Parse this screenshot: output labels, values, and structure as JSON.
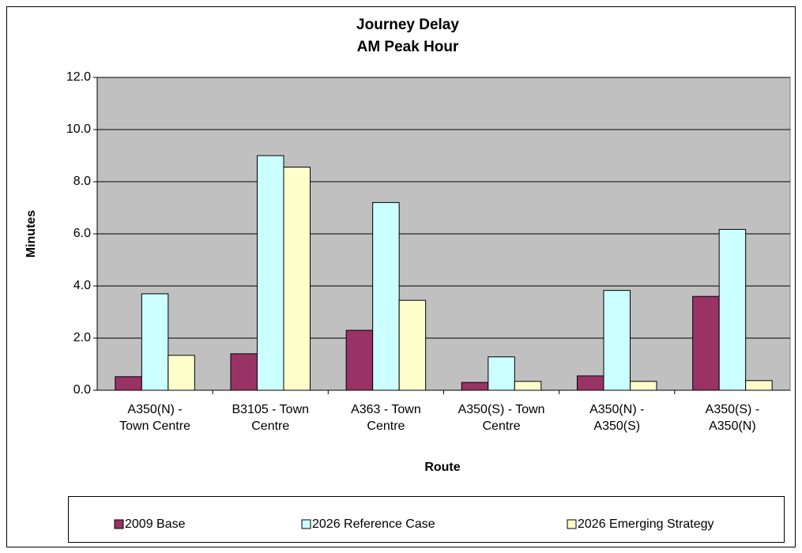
{
  "chart_data": {
    "type": "bar",
    "title": "Journey Delay",
    "subtitle": "AM Peak Hour",
    "x_label": "Route",
    "y_label": "Minutes",
    "categories": [
      "A350(N) - Town Centre",
      "B3105 - Town Centre",
      "A363 - Town Centre",
      "A350(S) - Town Centre",
      "A350(N) - A350(S)",
      "A350(S) - A350(N)"
    ],
    "series": [
      {
        "name": "2009 Base",
        "color": "#993366",
        "values": [
          0.52,
          1.4,
          2.3,
          0.3,
          0.55,
          3.6
        ]
      },
      {
        "name": "2026 Reference Case",
        "color": "#ccffff",
        "values": [
          3.7,
          9.0,
          7.2,
          1.28,
          3.83,
          6.17
        ]
      },
      {
        "name": "2026 Emerging Strategy",
        "color": "#ffffcc",
        "values": [
          1.34,
          8.56,
          3.45,
          0.34,
          0.34,
          0.37
        ]
      }
    ],
    "ylim": [
      0,
      12
    ],
    "yticks": [
      {
        "value": 0,
        "label": "0.0"
      },
      {
        "value": 2,
        "label": "2.0"
      },
      {
        "value": 4,
        "label": "4.0"
      },
      {
        "value": 6,
        "label": "6.0"
      },
      {
        "value": 8,
        "label": "8.0"
      },
      {
        "value": 10,
        "label": "10.0"
      },
      {
        "value": 12,
        "label": "12.0"
      }
    ],
    "grid": true,
    "legend": "bottom"
  }
}
